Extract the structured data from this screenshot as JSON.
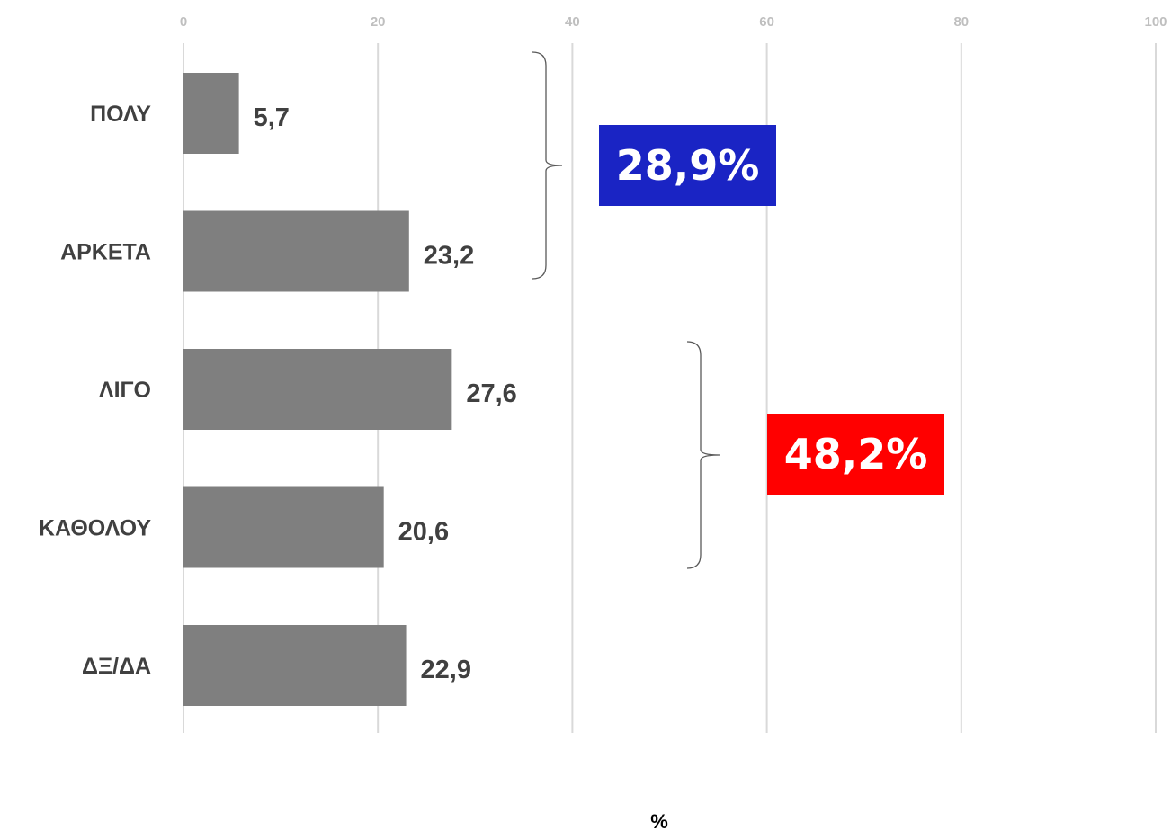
{
  "chart_data": {
    "type": "bar",
    "orientation": "horizontal",
    "categories": [
      "ΠΟΛΥ",
      "ΑΡΚΕΤΑ",
      "ΛΙΓΟ",
      "ΚΑΘΟΛΟΥ",
      "ΔΞ/ΔΑ"
    ],
    "values": [
      5.7,
      23.2,
      27.6,
      20.6,
      22.9
    ],
    "value_labels": [
      "5,7",
      "23,2",
      "27,6",
      "20,6",
      "22,9"
    ],
    "xlim": [
      0,
      100
    ],
    "x_ticks": [
      "0",
      "20",
      "40",
      "60",
      "80",
      "100"
    ],
    "x_tick_values": [
      0,
      20,
      40,
      60,
      80,
      100
    ],
    "xlabel": "%",
    "grid": "vertical",
    "bar_color": "#7f7f7f",
    "annotations": [
      {
        "label": "28,9%",
        "group": [
          "ΠΟΛΥ",
          "ΑΡΚΕΤΑ"
        ],
        "color": "#1a24c4"
      },
      {
        "label": "48,2%",
        "group": [
          "ΛΙΓΟ",
          "ΚΑΘΟΛΟΥ"
        ],
        "color": "#ff0000"
      }
    ]
  }
}
